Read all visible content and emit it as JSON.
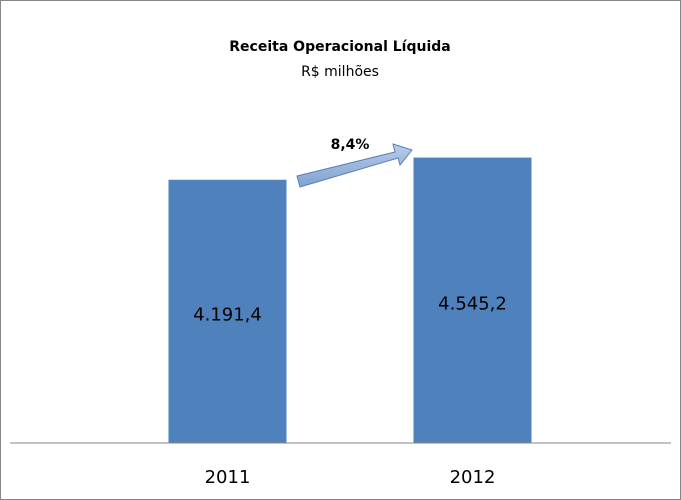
{
  "chart_data": {
    "type": "bar",
    "title": "Receita Operacional Líquida",
    "subtitle": "R$ milhões",
    "categories": [
      "2011",
      "2012"
    ],
    "values": [
      4191.4,
      4545.2
    ],
    "value_labels": [
      "4.191,4",
      "4.545,2"
    ],
    "color": "#4f81bd",
    "ylim": [
      0,
      5000
    ],
    "annotation": "8,4%"
  }
}
